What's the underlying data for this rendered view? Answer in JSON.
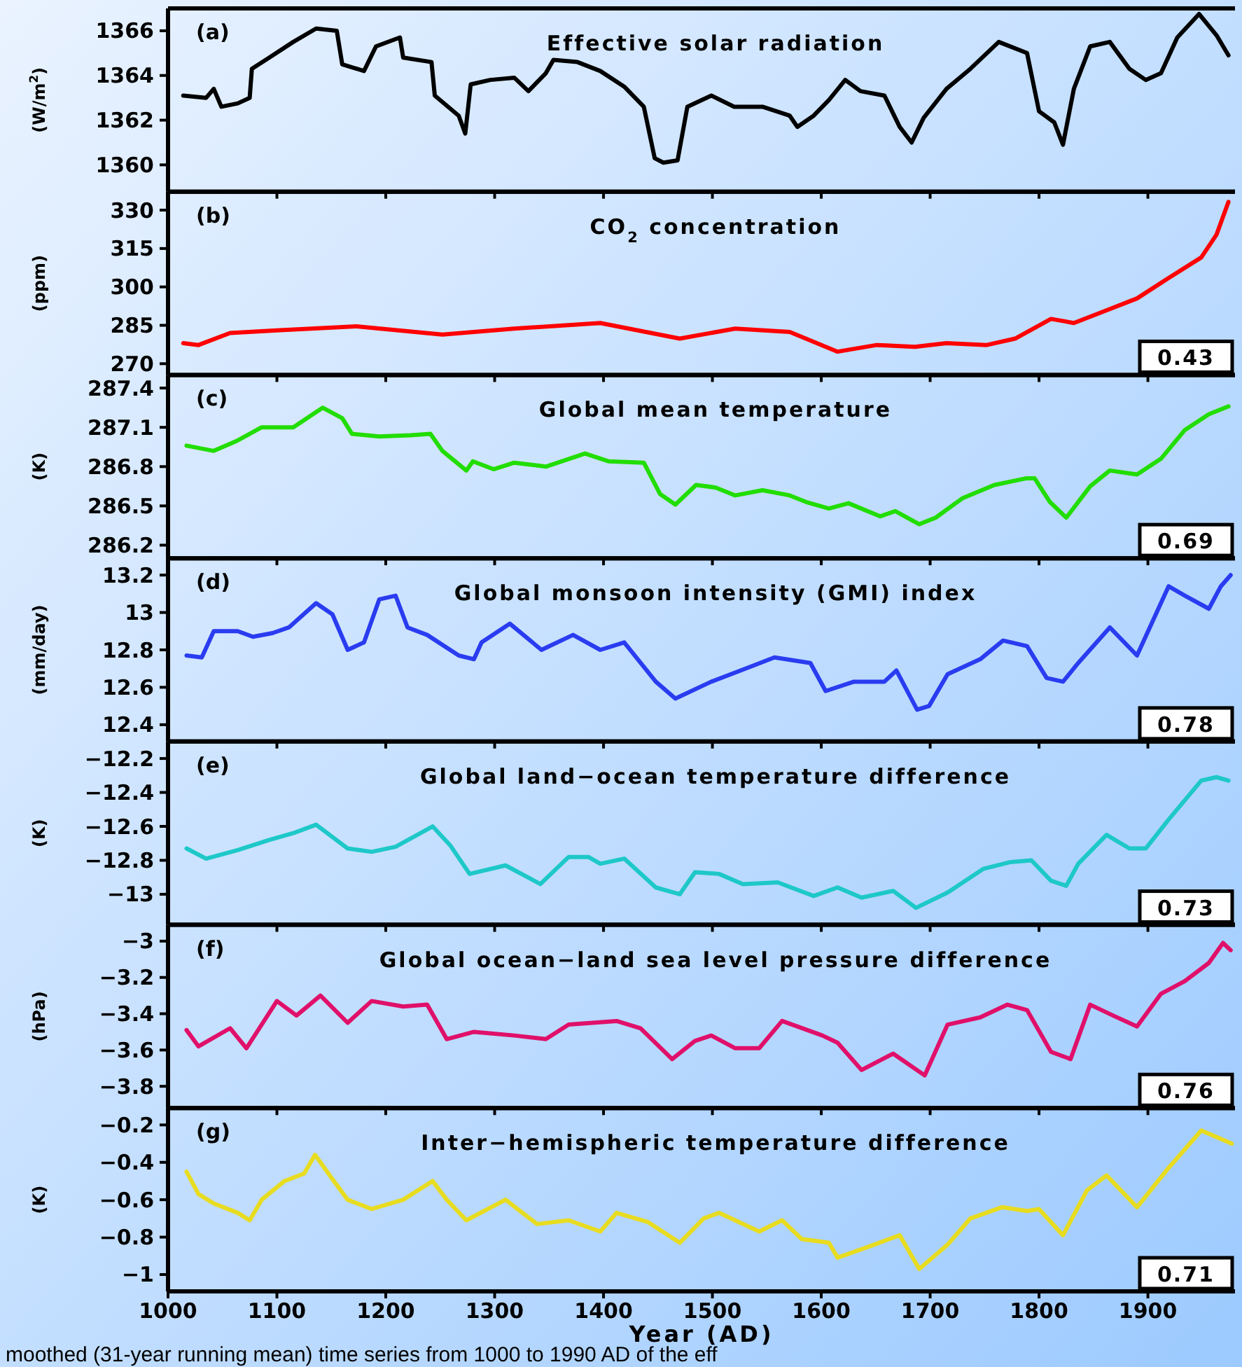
{
  "chart_data": [
    {
      "type": "line",
      "title": "Effective solar radiation",
      "ylabel": "(W/m$^{2}$)",
      "annotations": [
        "(a)"
      ],
      "xlim": [
        1000,
        1980
      ],
      "xticks": [
        1000,
        1100,
        1200,
        1300,
        1400,
        1500,
        1600,
        1700,
        1800,
        1900
      ],
      "ylim": [
        1358.8,
        1367.0
      ],
      "yticks": [
        1360,
        1362,
        1364,
        1366
      ],
      "tick_labels": "y",
      "grid": false,
      "series": [
        {
          "color": "#000000",
          "x": [
            1014,
            1035,
            1042,
            1049,
            1064,
            1075,
            1077,
            1093,
            1115,
            1136,
            1155,
            1160,
            1180,
            1191,
            1213,
            1216,
            1242,
            1245,
            1267,
            1273,
            1278,
            1296,
            1318,
            1331,
            1347,
            1354,
            1376,
            1397,
            1419,
            1437,
            1447,
            1455,
            1468,
            1477,
            1499,
            1520,
            1546,
            1571,
            1578,
            1593,
            1607,
            1622,
            1636,
            1658,
            1672,
            1683,
            1694,
            1715,
            1737,
            1763,
            1789,
            1800,
            1814,
            1822,
            1832,
            1847,
            1865,
            1883,
            1898,
            1912,
            1927,
            1947,
            1963,
            1974
          ],
          "values": [
            1363.1,
            1363.0,
            1363.4,
            1362.6,
            1362.75,
            1363.0,
            1364.3,
            1364.8,
            1365.5,
            1366.1,
            1366.0,
            1364.5,
            1364.2,
            1365.3,
            1365.7,
            1364.8,
            1364.6,
            1363.1,
            1362.2,
            1361.4,
            1363.6,
            1363.8,
            1363.9,
            1363.3,
            1364.1,
            1364.7,
            1364.6,
            1364.2,
            1363.5,
            1362.6,
            1360.3,
            1360.1,
            1360.2,
            1362.6,
            1363.1,
            1362.6,
            1362.6,
            1362.2,
            1361.7,
            1362.2,
            1362.9,
            1363.8,
            1363.3,
            1363.1,
            1361.7,
            1361.0,
            1362.1,
            1363.4,
            1364.3,
            1365.5,
            1365.0,
            1362.4,
            1361.9,
            1360.9,
            1363.4,
            1365.3,
            1365.5,
            1364.3,
            1363.8,
            1364.1,
            1365.7,
            1366.75,
            1365.8,
            1364.9
          ]
        }
      ]
    },
    {
      "type": "line",
      "title": "CO$_{2}$ concentration",
      "ylabel": "(ppm)",
      "annotations": [
        "(b)",
        "0.43"
      ],
      "xlim": [
        1000,
        1980
      ],
      "xticks": [
        1000,
        1100,
        1200,
        1300,
        1400,
        1500,
        1600,
        1700,
        1800,
        1900
      ],
      "ylim": [
        265.6,
        337.2
      ],
      "yticks": [
        270,
        285,
        300,
        315,
        330
      ],
      "tick_labels": "y",
      "grid": false,
      "series": [
        {
          "color": "#ff0000",
          "x": [
            1014,
            1028,
            1057,
            1100,
            1173,
            1252,
            1318,
            1397,
            1470,
            1521,
            1571,
            1615,
            1651,
            1686,
            1715,
            1752,
            1778,
            1811,
            1832,
            1861,
            1890,
            1919,
            1949,
            1963,
            1974
          ],
          "values": [
            278,
            277.3,
            282,
            283,
            284.6,
            281.4,
            283.7,
            285.9,
            279.8,
            283.7,
            282.4,
            274.7,
            277.3,
            276.6,
            278,
            277.3,
            279.8,
            287.5,
            285.9,
            290.7,
            295.5,
            303.5,
            311.5,
            320.4,
            333.2
          ]
        }
      ]
    },
    {
      "type": "line",
      "title": "Global mean temperature",
      "ylabel": "(K)",
      "annotations": [
        "(c)",
        "0.69"
      ],
      "xlim": [
        1000,
        1980
      ],
      "xticks": [
        1000,
        1100,
        1200,
        1300,
        1400,
        1500,
        1600,
        1700,
        1800,
        1900
      ],
      "ylim": [
        286.1,
        287.5
      ],
      "yticks": [
        286.2,
        286.5,
        286.8,
        287.1,
        287.4
      ],
      "tick_labels": "y",
      "grid": false,
      "series": [
        {
          "color": "#22dd00",
          "x": [
            1017,
            1042,
            1064,
            1086,
            1115,
            1142,
            1160,
            1169,
            1194,
            1223,
            1241,
            1252,
            1274,
            1280,
            1299,
            1318,
            1347,
            1383,
            1405,
            1437,
            1452,
            1466,
            1485,
            1503,
            1521,
            1546,
            1571,
            1586,
            1607,
            1625,
            1654,
            1668,
            1690,
            1705,
            1730,
            1759,
            1788,
            1796,
            1810,
            1825,
            1847,
            1865,
            1890,
            1912,
            1934,
            1956,
            1974
          ],
          "values": [
            286.96,
            286.92,
            287.0,
            287.1,
            287.1,
            287.25,
            287.17,
            287.05,
            287.03,
            287.04,
            287.05,
            286.92,
            286.77,
            286.84,
            286.78,
            286.83,
            286.8,
            286.9,
            286.84,
            286.83,
            286.59,
            286.51,
            286.66,
            286.64,
            286.58,
            286.62,
            286.58,
            286.53,
            286.48,
            286.52,
            286.42,
            286.46,
            286.36,
            286.41,
            286.56,
            286.66,
            286.71,
            286.71,
            286.53,
            286.41,
            286.65,
            286.77,
            286.74,
            286.86,
            287.08,
            287.2,
            287.26
          ]
        }
      ]
    },
    {
      "type": "line",
      "title": "Global monsoon intensity (GMI) index",
      "ylabel": "(mm/day)",
      "annotations": [
        "(d)",
        "0.78"
      ],
      "xlim": [
        1000,
        1980
      ],
      "xticks": [
        1000,
        1100,
        1200,
        1300,
        1400,
        1500,
        1600,
        1700,
        1800,
        1900
      ],
      "ylim": [
        12.31,
        13.29
      ],
      "yticks": [
        12.4,
        12.6,
        12.8,
        13,
        13.2
      ],
      "tick_labels": "y",
      "grid": false,
      "series": [
        {
          "color": "#2a3cf0",
          "x": [
            1017,
            1031,
            1042,
            1064,
            1078,
            1096,
            1111,
            1136,
            1151,
            1165,
            1180,
            1194,
            1209,
            1220,
            1238,
            1267,
            1281,
            1288,
            1314,
            1343,
            1372,
            1397,
            1419,
            1448,
            1466,
            1499,
            1535,
            1557,
            1590,
            1604,
            1630,
            1658,
            1669,
            1688,
            1699,
            1716,
            1746,
            1767,
            1789,
            1807,
            1822,
            1836,
            1865,
            1890,
            1919,
            1934,
            1956,
            1967,
            1976
          ],
          "values": [
            12.77,
            12.76,
            12.9,
            12.9,
            12.87,
            12.89,
            12.92,
            13.05,
            12.99,
            12.8,
            12.84,
            13.07,
            13.09,
            12.92,
            12.88,
            12.77,
            12.75,
            12.84,
            12.94,
            12.8,
            12.88,
            12.8,
            12.84,
            12.63,
            12.54,
            12.63,
            12.71,
            12.76,
            12.73,
            12.58,
            12.63,
            12.63,
            12.69,
            12.48,
            12.5,
            12.67,
            12.75,
            12.85,
            12.82,
            12.65,
            12.63,
            12.73,
            12.92,
            12.77,
            13.14,
            13.09,
            13.02,
            13.14,
            13.2
          ]
        }
      ]
    },
    {
      "type": "line",
      "title": "Global land−ocean temperature difference",
      "ylabel": "(K)",
      "annotations": [
        "(e)",
        "0.73"
      ],
      "xlim": [
        1000,
        1980
      ],
      "xticks": [
        1000,
        1100,
        1200,
        1300,
        1400,
        1500,
        1600,
        1700,
        1800,
        1900
      ],
      "ylim": [
        -13.18,
        -12.1
      ],
      "yticks": [
        {
          "value": -13,
          "label": "−13"
        },
        {
          "value": -12.8,
          "label": "−12.8"
        },
        {
          "value": -12.6,
          "label": "−12.6"
        },
        {
          "value": -12.4,
          "label": "−12.4"
        },
        {
          "value": -12.2,
          "label": "−12.2"
        }
      ],
      "tick_labels": "y",
      "grid": false,
      "series": [
        {
          "color": "#1ec8c8",
          "x": [
            1017,
            1035,
            1064,
            1093,
            1115,
            1136,
            1165,
            1187,
            1209,
            1243,
            1259,
            1277,
            1310,
            1342,
            1368,
            1386,
            1397,
            1419,
            1448,
            1470,
            1484,
            1506,
            1528,
            1560,
            1593,
            1615,
            1637,
            1666,
            1687,
            1716,
            1749,
            1774,
            1793,
            1811,
            1825,
            1836,
            1862,
            1883,
            1898,
            1919,
            1949,
            1963,
            1974
          ],
          "values": [
            -12.73,
            -12.79,
            -12.74,
            -12.68,
            -12.64,
            -12.59,
            -12.73,
            -12.75,
            -12.72,
            -12.6,
            -12.71,
            -12.88,
            -12.83,
            -12.94,
            -12.78,
            -12.78,
            -12.82,
            -12.79,
            -12.96,
            -13.0,
            -12.87,
            -12.88,
            -12.94,
            -12.93,
            -13.01,
            -12.96,
            -13.02,
            -12.98,
            -13.08,
            -12.99,
            -12.85,
            -12.81,
            -12.8,
            -12.92,
            -12.95,
            -12.82,
            -12.65,
            -12.73,
            -12.73,
            -12.56,
            -12.33,
            -12.31,
            -12.33
          ]
        }
      ]
    },
    {
      "type": "line",
      "title": "Global ocean−land sea level pressure difference",
      "ylabel": "(hPa)",
      "annotations": [
        "(f)",
        "0.76"
      ],
      "xlim": [
        1000,
        1980
      ],
      "xticks": [
        1000,
        1100,
        1200,
        1300,
        1400,
        1500,
        1600,
        1700,
        1800,
        1900
      ],
      "ylim": [
        -3.92,
        -2.91
      ],
      "yticks": [
        {
          "value": -3.8,
          "label": "−3.8"
        },
        {
          "value": -3.6,
          "label": "−3.6"
        },
        {
          "value": -3.4,
          "label": "−3.4"
        },
        {
          "value": -3.2,
          "label": "−3.2"
        },
        {
          "value": -3,
          "label": "−3"
        }
      ],
      "tick_labels": "y",
      "grid": false,
      "series": [
        {
          "color": "#e0106a",
          "x": [
            1017,
            1028,
            1057,
            1072,
            1100,
            1118,
            1140,
            1165,
            1187,
            1216,
            1238,
            1256,
            1281,
            1318,
            1347,
            1368,
            1412,
            1434,
            1463,
            1484,
            1499,
            1521,
            1543,
            1564,
            1601,
            1615,
            1637,
            1666,
            1695,
            1716,
            1746,
            1771,
            1789,
            1811,
            1829,
            1847,
            1868,
            1890,
            1912,
            1934,
            1956,
            1969,
            1976
          ],
          "values": [
            -3.49,
            -3.58,
            -3.48,
            -3.59,
            -3.33,
            -3.41,
            -3.3,
            -3.45,
            -3.33,
            -3.36,
            -3.35,
            -3.54,
            -3.5,
            -3.52,
            -3.54,
            -3.46,
            -3.44,
            -3.48,
            -3.65,
            -3.55,
            -3.52,
            -3.59,
            -3.59,
            -3.44,
            -3.52,
            -3.56,
            -3.71,
            -3.62,
            -3.74,
            -3.46,
            -3.42,
            -3.35,
            -3.38,
            -3.61,
            -3.65,
            -3.35,
            -3.41,
            -3.47,
            -3.29,
            -3.22,
            -3.12,
            -3.01,
            -3.05
          ]
        }
      ]
    },
    {
      "type": "line",
      "title": "Inter−hemispheric temperature difference",
      "xlabel": "Year (AD)",
      "ylabel": "(K)",
      "annotations": [
        "(g)",
        "0.71",
        "moothed (31-year running mean) time series from 1000 to 1990 AD of the eff"
      ],
      "xlim": [
        1000,
        1980
      ],
      "xticks": [
        1000,
        1100,
        1200,
        1300,
        1400,
        1500,
        1600,
        1700,
        1800,
        1900
      ],
      "ylim": [
        -1.09,
        -0.11
      ],
      "yticks": [
        {
          "value": -1,
          "label": "−1"
        },
        {
          "value": -0.8,
          "label": "−0.8"
        },
        {
          "value": -0.6,
          "label": "−0.6"
        },
        {
          "value": -0.4,
          "label": "−0.4"
        },
        {
          "value": -0.2,
          "label": "−0.2"
        }
      ],
      "grid": false,
      "series": [
        {
          "color": "#e8dc20",
          "x": [
            1017,
            1028,
            1042,
            1064,
            1075,
            1086,
            1107,
            1125,
            1135,
            1151,
            1165,
            1187,
            1216,
            1243,
            1256,
            1274,
            1310,
            1339,
            1368,
            1397,
            1412,
            1441,
            1470,
            1492,
            1506,
            1543,
            1564,
            1582,
            1607,
            1615,
            1644,
            1672,
            1690,
            1716,
            1737,
            1766,
            1789,
            1800,
            1822,
            1844,
            1862,
            1890,
            1919,
            1949,
            1977
          ],
          "values": [
            -0.45,
            -0.57,
            -0.62,
            -0.67,
            -0.71,
            -0.6,
            -0.5,
            -0.46,
            -0.36,
            -0.49,
            -0.6,
            -0.65,
            -0.6,
            -0.5,
            -0.6,
            -0.71,
            -0.6,
            -0.73,
            -0.71,
            -0.77,
            -0.67,
            -0.72,
            -0.83,
            -0.7,
            -0.67,
            -0.77,
            -0.71,
            -0.81,
            -0.83,
            -0.91,
            -0.85,
            -0.79,
            -0.97,
            -0.84,
            -0.7,
            -0.64,
            -0.66,
            -0.65,
            -0.79,
            -0.55,
            -0.47,
            -0.64,
            -0.43,
            -0.23,
            -0.3
          ]
        }
      ]
    }
  ]
}
